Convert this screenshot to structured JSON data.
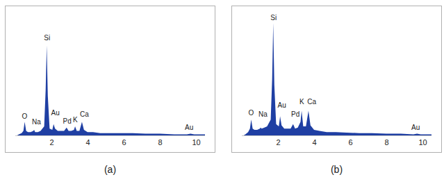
{
  "chart_data": [
    {
      "type": "area",
      "caption": "(a)",
      "color": "#1f3fa3",
      "x": [
        0.1,
        0.2,
        0.35,
        0.45,
        0.52,
        0.6,
        0.7,
        0.85,
        1.0,
        1.04,
        1.1,
        1.25,
        1.4,
        1.6,
        1.68,
        1.74,
        1.8,
        1.9,
        2.05,
        2.12,
        2.2,
        2.35,
        2.5,
        2.7,
        2.84,
        2.95,
        3.1,
        3.25,
        3.31,
        3.4,
        3.55,
        3.69,
        3.8,
        4.0,
        4.3,
        4.7,
        5.2,
        5.8,
        6.5,
        7.2,
        8.0,
        8.8,
        9.5,
        9.7,
        9.9,
        10.5
      ],
      "values": [
        0,
        1,
        2,
        4,
        12,
        4,
        3,
        3,
        4,
        5,
        3,
        3,
        4,
        8,
        40,
        80,
        35,
        6,
        5,
        10,
        6,
        4,
        4,
        4,
        7,
        4,
        4,
        5,
        8,
        4,
        4,
        12,
        5,
        3,
        3,
        2,
        2,
        2,
        2,
        1.5,
        1.5,
        1,
        1,
        1.5,
        1,
        1
      ],
      "xlim": [
        0,
        10.5
      ],
      "xticks": [
        2,
        4,
        6,
        8,
        10
      ],
      "ylim": [
        0,
        110
      ],
      "tick_labels": "x",
      "annotations": [
        {
          "text": "O",
          "x": 0.5,
          "y": 17
        },
        {
          "text": "Na",
          "x": 1.15,
          "y": 12
        },
        {
          "text": "Si",
          "x": 1.74,
          "y": 87
        },
        {
          "text": "Au",
          "x": 2.2,
          "y": 20
        },
        {
          "text": "Pd",
          "x": 2.85,
          "y": 13
        },
        {
          "text": "K",
          "x": 3.3,
          "y": 14
        },
        {
          "text": "Ca",
          "x": 3.8,
          "y": 19
        },
        {
          "text": "Au",
          "x": 9.6,
          "y": 7
        }
      ]
    },
    {
      "type": "area",
      "caption": "(b)",
      "color": "#1f3fa3",
      "x": [
        0.1,
        0.2,
        0.35,
        0.45,
        0.52,
        0.6,
        0.7,
        0.85,
        1.0,
        1.04,
        1.1,
        1.25,
        1.4,
        1.6,
        1.68,
        1.74,
        1.8,
        1.9,
        2.05,
        2.12,
        2.2,
        2.35,
        2.5,
        2.7,
        2.84,
        2.95,
        3.1,
        3.25,
        3.31,
        3.4,
        3.55,
        3.69,
        3.8,
        4.0,
        4.3,
        4.7,
        5.2,
        5.8,
        6.5,
        7.2,
        8.0,
        8.8,
        9.5,
        9.7,
        9.9,
        10.5
      ],
      "values": [
        0,
        1,
        3,
        6,
        14,
        6,
        5,
        5,
        6,
        7,
        6,
        7,
        8,
        14,
        50,
        100,
        45,
        10,
        8,
        17,
        9,
        6,
        6,
        6,
        10,
        6,
        7,
        12,
        22,
        8,
        8,
        22,
        9,
        5,
        4,
        3,
        3,
        2.5,
        2,
        2,
        1.5,
        1.5,
        1,
        1.5,
        1,
        1
      ],
      "xlim": [
        0,
        10.5
      ],
      "xticks": [
        2,
        4,
        6,
        8,
        10
      ],
      "ylim": [
        0,
        110
      ],
      "tick_labels": "x",
      "annotations": [
        {
          "text": "O",
          "x": 0.5,
          "y": 20
        },
        {
          "text": "Na",
          "x": 1.15,
          "y": 19
        },
        {
          "text": "Si",
          "x": 1.74,
          "y": 105
        },
        {
          "text": "Au",
          "x": 2.2,
          "y": 27
        },
        {
          "text": "Pd",
          "x": 2.95,
          "y": 19
        },
        {
          "text": "K",
          "x": 3.3,
          "y": 30
        },
        {
          "text": "Ca",
          "x": 3.85,
          "y": 30
        },
        {
          "text": "Au",
          "x": 9.6,
          "y": 7
        }
      ]
    }
  ]
}
